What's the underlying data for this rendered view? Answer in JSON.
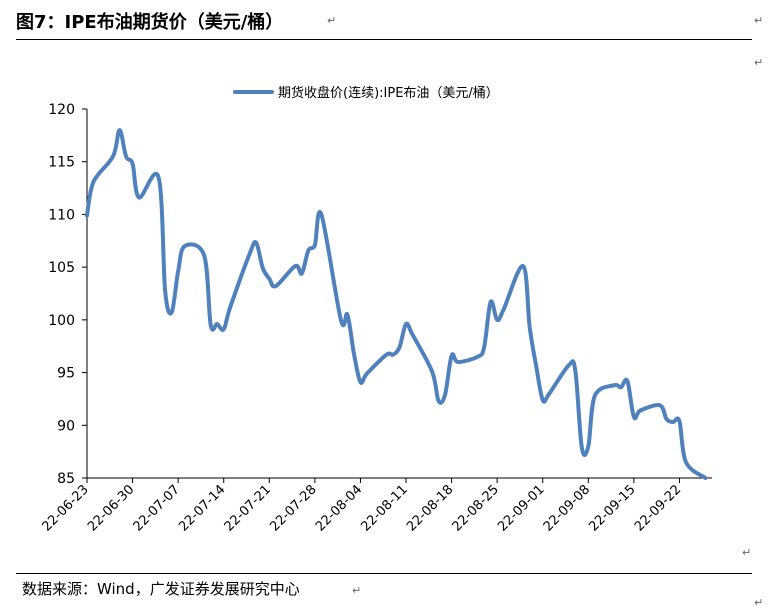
{
  "header": {
    "figure_title": "图7：IPE布油期货价（美元/桶）"
  },
  "footer": {
    "source": "数据来源：Wind，广发证券发展研究中心"
  },
  "marks": {
    "paragraph_mark": "↵"
  },
  "colors": {
    "series_line": "#4f81bd",
    "axis": "#000000"
  },
  "chart_data": {
    "type": "line",
    "title": "",
    "xlabel": "",
    "ylabel": "",
    "ylim": [
      85,
      120
    ],
    "yticks": [
      120,
      115,
      110,
      105,
      100,
      95,
      90,
      85
    ],
    "xticks": [
      "22-06-23",
      "22-06-30",
      "22-07-07",
      "22-07-14",
      "22-07-21",
      "22-07-28",
      "22-08-04",
      "22-08-11",
      "22-08-18",
      "22-08-25",
      "22-09-01",
      "22-09-08",
      "22-09-15",
      "22-09-22"
    ],
    "legend": {
      "position": "top-center"
    },
    "grid": false,
    "series": [
      {
        "name": "期货收盘价(连续):IPE布油（美元/桶）",
        "x": [
          "2022-06-23",
          "2022-06-24",
          "2022-06-27",
          "2022-06-28",
          "2022-06-29",
          "2022-06-30",
          "2022-07-01",
          "2022-07-04",
          "2022-07-05",
          "2022-07-06",
          "2022-07-07",
          "2022-07-08",
          "2022-07-11",
          "2022-07-12",
          "2022-07-13",
          "2022-07-14",
          "2022-07-15",
          "2022-07-18",
          "2022-07-19",
          "2022-07-20",
          "2022-07-21",
          "2022-07-22",
          "2022-07-25",
          "2022-07-26",
          "2022-07-27",
          "2022-07-28",
          "2022-07-29",
          "2022-08-01",
          "2022-08-02",
          "2022-08-03",
          "2022-08-04",
          "2022-08-05",
          "2022-08-08",
          "2022-08-09",
          "2022-08-10",
          "2022-08-11",
          "2022-08-12",
          "2022-08-15",
          "2022-08-16",
          "2022-08-17",
          "2022-08-18",
          "2022-08-19",
          "2022-08-22",
          "2022-08-23",
          "2022-08-24",
          "2022-08-25",
          "2022-08-26",
          "2022-08-29",
          "2022-08-30",
          "2022-08-31",
          "2022-09-01",
          "2022-09-02",
          "2022-09-05",
          "2022-09-06",
          "2022-09-07",
          "2022-09-08",
          "2022-09-09",
          "2022-09-12",
          "2022-09-13",
          "2022-09-14",
          "2022-09-15",
          "2022-09-16",
          "2022-09-19",
          "2022-09-20",
          "2022-09-21",
          "2022-09-22",
          "2022-09-23",
          "2022-09-26"
        ],
        "values": [
          109.9,
          113.1,
          115.5,
          118.0,
          115.5,
          114.8,
          111.6,
          113.5,
          102.8,
          100.7,
          104.6,
          107.0,
          106.1,
          99.5,
          99.6,
          99.1,
          101.2,
          106.3,
          107.3,
          104.9,
          103.9,
          103.2,
          105.1,
          104.4,
          106.6,
          107.1,
          110.0,
          100.0,
          100.5,
          96.8,
          94.1,
          94.9,
          96.7,
          96.7,
          97.4,
          99.6,
          98.6,
          95.1,
          92.3,
          92.9,
          96.6,
          96.0,
          96.5,
          97.4,
          101.7,
          100.0,
          101.0,
          105.1,
          99.3,
          95.6,
          92.4,
          93.0,
          95.7,
          95.2,
          87.9,
          88.0,
          92.8,
          93.8,
          93.6,
          94.2,
          90.8,
          91.4,
          91.9,
          90.6,
          90.3,
          90.4,
          86.5,
          85.0
        ]
      }
    ]
  }
}
